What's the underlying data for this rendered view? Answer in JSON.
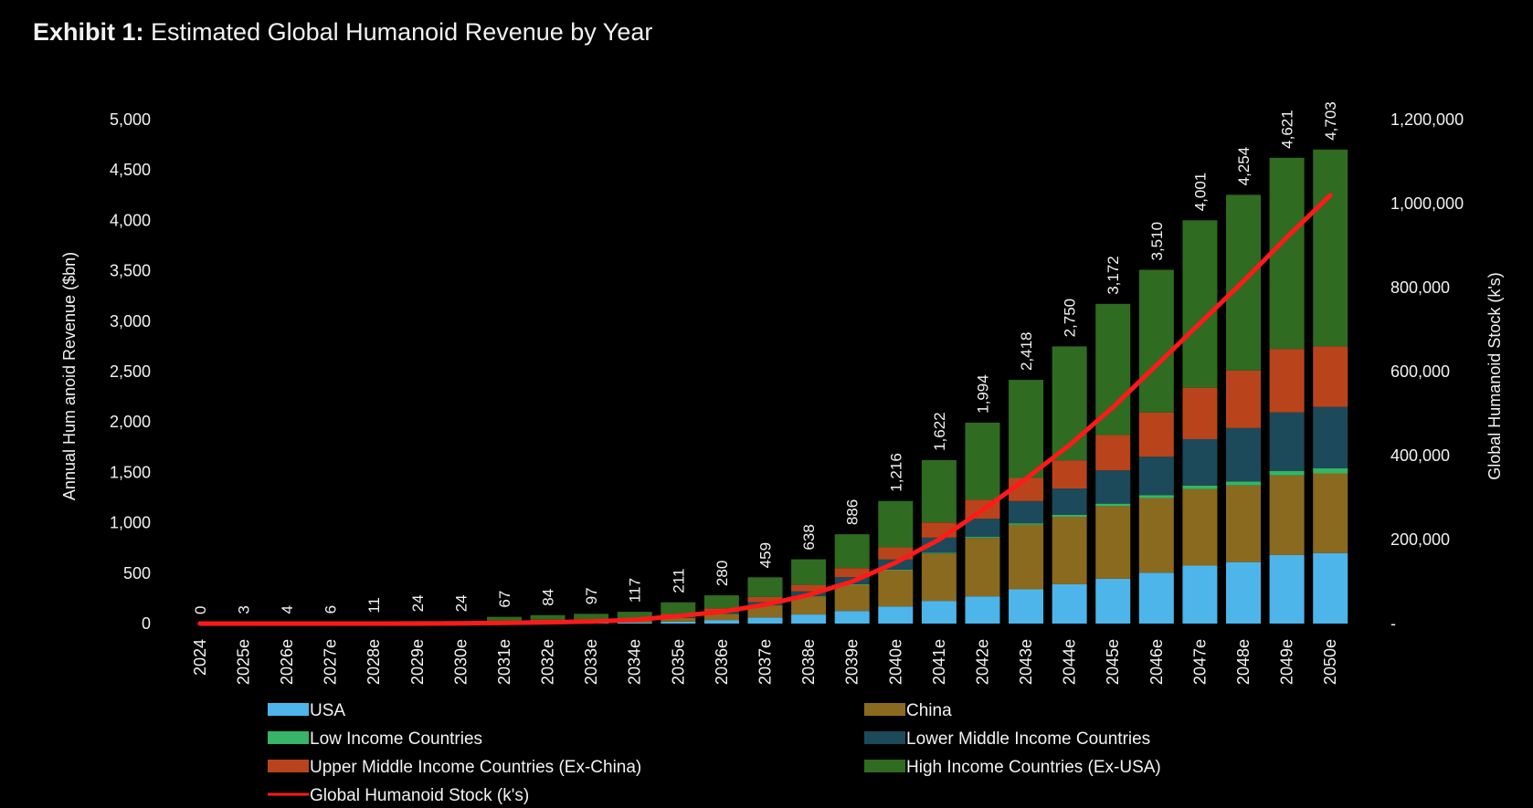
{
  "title": {
    "prefix": "Exhibit 1:",
    "text": "Estimated Global Humanoid Revenue by Year"
  },
  "colors": {
    "USA": "#4db5ea",
    "China": "#8a6a1f",
    "Low Income Countries": "#35b565",
    "Lower Middle Income Countries": "#1c4a5a",
    "Upper Middle Income Countries (Ex-China)": "#b9441c",
    "High Income Countries (Ex-USA)": "#2f6b21",
    "Global Humanoid Stock (k's)": "#ff1a1a"
  },
  "chart_data": {
    "type": "bar",
    "stacked": true,
    "title": "Estimated Global Humanoid Revenue by Year",
    "ylabel": "Annual Hum anoid Revenue ($bn)",
    "y2label": "Global Humanoid Stock (k's)",
    "ylim": [
      0,
      5000
    ],
    "y2lim": [
      0,
      1200000
    ],
    "yticks": [
      "5,000",
      "4,500",
      "4,000",
      "3,500",
      "3,000",
      "2,500",
      "2,000",
      "1,500",
      "1,000",
      "500",
      "0"
    ],
    "y2ticks": [
      "1,200,000",
      "1,000,000",
      "800,000",
      "600,000",
      "400,000",
      "200,000",
      "-"
    ],
    "categories": [
      "2024",
      "2025e",
      "2026e",
      "2027e",
      "2028e",
      "2029e",
      "2030e",
      "2031e",
      "2032e",
      "2033e",
      "2034e",
      "2035e",
      "2036e",
      "2037e",
      "2038e",
      "2039e",
      "2040e",
      "2041e",
      "2042e",
      "2043e",
      "2044e",
      "2045e",
      "2046e",
      "2047e",
      "2048e",
      "2049e",
      "2050e"
    ],
    "totals": [
      0,
      3,
      4,
      6,
      11,
      24,
      24,
      67,
      84,
      97,
      117,
      211,
      280,
      459,
      638,
      886,
      1216,
      1622,
      1994,
      2418,
      2750,
      3172,
      3510,
      4001,
      4254,
      4621,
      4703
    ],
    "total_labels": [
      "0",
      "3",
      "4",
      "6",
      "11",
      "24",
      "24",
      "67",
      "84",
      "97",
      "117",
      "211",
      "280",
      "459",
      "638",
      "886",
      "1,216",
      "1,622",
      "1,994",
      "2,418",
      "2,750",
      "3,172",
      "3,510",
      "4,001",
      "4,254",
      "4,621",
      "4,703"
    ],
    "series": [
      {
        "name": "USA",
        "values": [
          0,
          0,
          0,
          0,
          1,
          2,
          2,
          4,
          6,
          7,
          9,
          20,
          35,
          60,
          90,
          125,
          170,
          225,
          270,
          340,
          390,
          445,
          505,
          575,
          610,
          680,
          700
        ]
      },
      {
        "name": "China",
        "values": [
          0,
          0,
          0,
          1,
          2,
          4,
          4,
          10,
          14,
          16,
          20,
          35,
          60,
          120,
          180,
          260,
          360,
          470,
          580,
          640,
          670,
          720,
          740,
          760,
          760,
          790,
          790
        ]
      },
      {
        "name": "Low Income Countries",
        "values": [
          0,
          0,
          0,
          0,
          0,
          0,
          0,
          0,
          0,
          0,
          0,
          1,
          2,
          3,
          4,
          5,
          6,
          8,
          10,
          15,
          20,
          25,
          30,
          35,
          40,
          45,
          50
        ]
      },
      {
        "name": "Lower Middle Income Countries",
        "values": [
          0,
          0,
          0,
          0,
          1,
          2,
          2,
          5,
          6,
          7,
          9,
          15,
          20,
          30,
          45,
          70,
          100,
          150,
          180,
          220,
          260,
          330,
          380,
          460,
          530,
          580,
          610
        ]
      },
      {
        "name": "Upper Middle Income Countries (Ex-China)",
        "values": [
          0,
          1,
          1,
          1,
          2,
          4,
          4,
          10,
          12,
          14,
          16,
          25,
          35,
          50,
          65,
          90,
          120,
          150,
          190,
          230,
          280,
          350,
          440,
          510,
          570,
          630,
          600
        ]
      },
      {
        "name": "High Income Countries (Ex-USA)",
        "values": [
          0,
          2,
          3,
          4,
          5,
          12,
          12,
          38,
          46,
          53,
          63,
          115,
          128,
          196,
          254,
          336,
          460,
          619,
          764,
          973,
          1130,
          1302,
          1415,
          1661,
          1744,
          1896,
          1953
        ]
      }
    ],
    "line": {
      "name": "Global Humanoid Stock (k's)",
      "axis": "right",
      "values": [
        0,
        0,
        0,
        0,
        0,
        0,
        500,
        1500,
        3000,
        5000,
        9000,
        18000,
        28000,
        45000,
        68000,
        100000,
        145000,
        200000,
        270000,
        345000,
        425000,
        515000,
        615000,
        715000,
        815000,
        920000,
        1020000
      ]
    },
    "legend": [
      "USA",
      "China",
      "Low Income Countries",
      "Lower Middle Income Countries",
      "Upper Middle Income Countries (Ex-China)",
      "High Income Countries (Ex-USA)",
      "Global Humanoid Stock (k's)"
    ]
  }
}
